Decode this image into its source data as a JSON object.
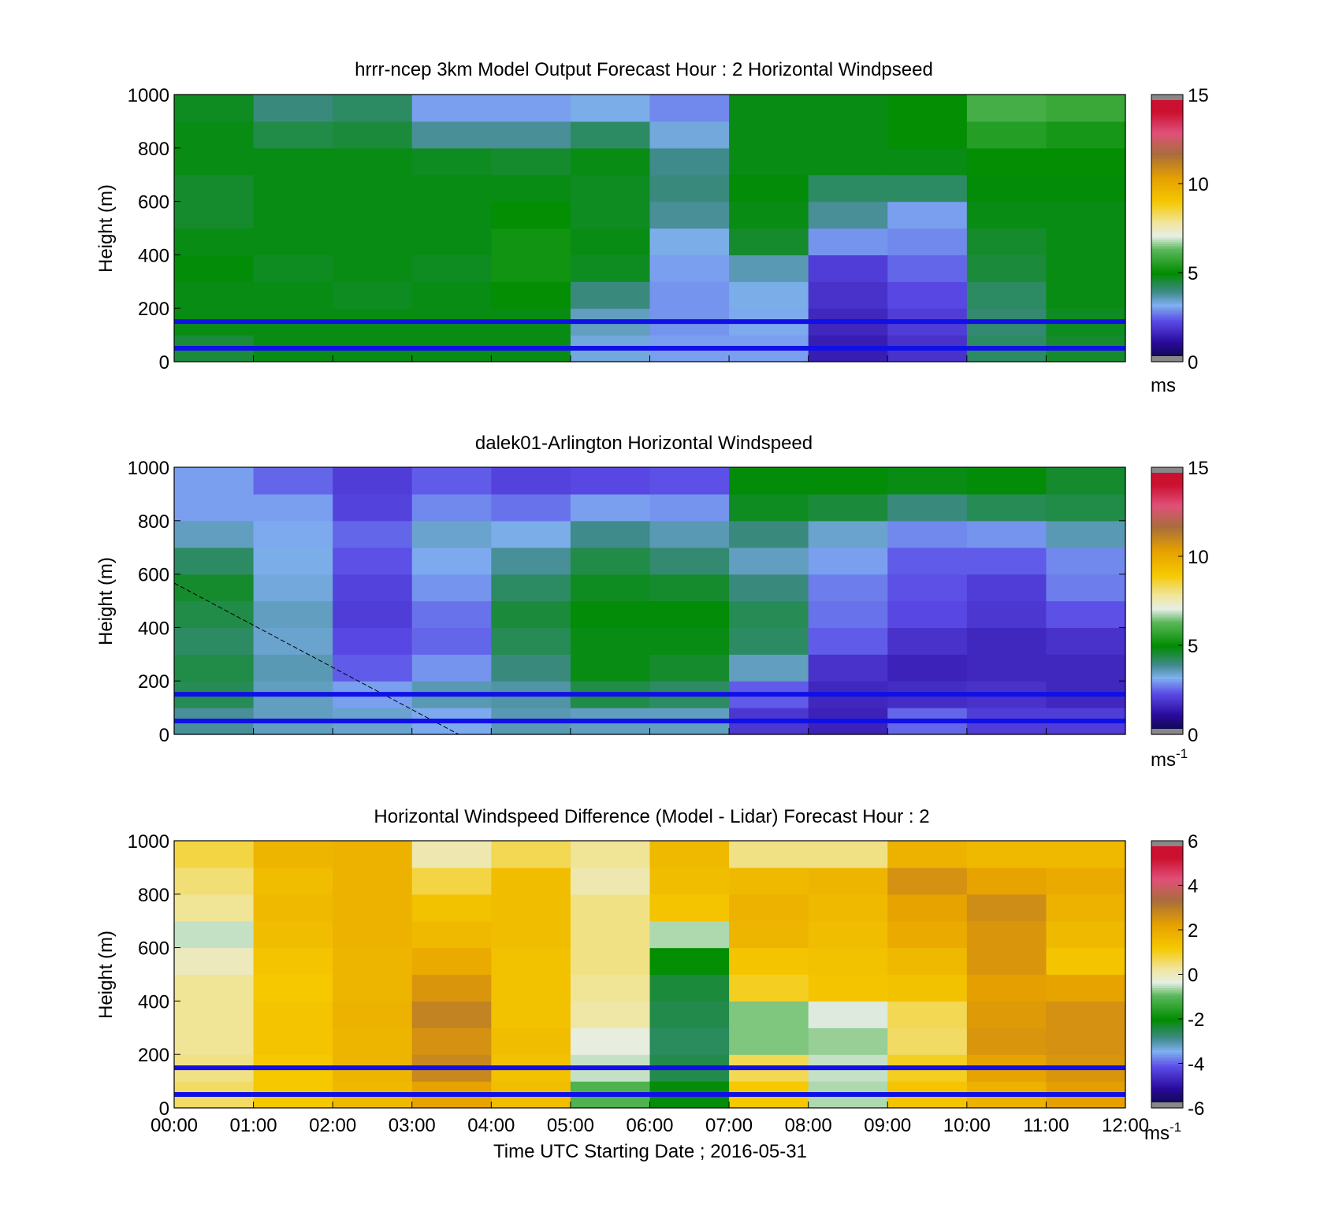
{
  "xticks": [
    "00:00",
    "01:00",
    "02:00",
    "03:00",
    "04:00",
    "05:00",
    "06:00",
    "07:00",
    "08:00",
    "09:00",
    "10:00",
    "11:00",
    "12:00"
  ],
  "x_axis_label": "Time UTC  Starting Date ; 2016-05-31",
  "reference_lines_m": [
    50,
    150
  ],
  "line_color": "#1010e6",
  "panels": [
    {
      "title": "hrrr-ncep 3km Model Output   Forecast Hour : 2 Horizontal Windpseed",
      "ylabel": "Height (m)",
      "yticks": [
        "0",
        "200",
        "400",
        "600",
        "800",
        "1000"
      ],
      "cbar_ticks": [
        "0",
        "5",
        "10",
        "15"
      ],
      "cbar_unit": "ms",
      "cbar_unit_sup": "",
      "colormap": "speed",
      "vmin": 0,
      "vmax": 15
    },
    {
      "title": "dalek01-Arlington  Horizontal Windspeed",
      "ylabel": "Height (m)",
      "yticks": [
        "0",
        "200",
        "400",
        "600",
        "800",
        "1000"
      ],
      "cbar_ticks": [
        "0",
        "5",
        "10",
        "15"
      ],
      "cbar_unit": "ms",
      "cbar_unit_sup": "-1",
      "colormap": "speed",
      "vmin": 0,
      "vmax": 15
    },
    {
      "title": "Horizontal Windspeed Difference (Model - Lidar) Forecast Hour : 2",
      "ylabel": "Height (m)",
      "yticks": [
        "0",
        "200",
        "400",
        "600",
        "800",
        "1000"
      ],
      "cbar_ticks": [
        "-6",
        "-4",
        "-2",
        "0",
        "2",
        "4",
        "6"
      ],
      "cbar_unit": "ms",
      "cbar_unit_sup": "-1",
      "colormap": "speed",
      "vmin": -6,
      "vmax": 6
    }
  ],
  "chart_data": [
    {
      "type": "heatmap",
      "title": "hrrr-ncep 3km Model Output   Forecast Hour : 2 Horizontal Windpseed",
      "xlabel": "",
      "ylabel": "Height (m)",
      "x_range": [
        "00:00",
        "12:00"
      ],
      "ylim": [
        0,
        1000
      ],
      "colorbar": {
        "range": [
          0,
          15
        ],
        "unit": "ms"
      },
      "columns_hours": [
        0,
        1,
        2,
        3,
        4,
        5,
        6,
        7,
        8,
        9,
        10,
        11
      ],
      "levels_m": [
        50,
        150,
        250,
        350,
        450,
        550,
        650,
        750,
        850,
        950
      ],
      "values_ms": [
        [
          4.5,
          4.8,
          4.8,
          4.9,
          4.8,
          4.6,
          4.6,
          4.8,
          4.8,
          4.7
        ],
        [
          4.8,
          4.8,
          4.8,
          4.7,
          4.8,
          4.8,
          4.8,
          4.8,
          4.4,
          4.0
        ],
        [
          4.8,
          4.8,
          4.7,
          4.8,
          4.8,
          4.8,
          4.8,
          4.8,
          4.5,
          4.2
        ],
        [
          4.8,
          4.8,
          4.8,
          4.7,
          4.8,
          4.8,
          4.8,
          4.7,
          3.8,
          3.0
        ],
        [
          4.8,
          4.8,
          5.0,
          5.2,
          5.2,
          5.0,
          4.8,
          4.6,
          3.8,
          3.0
        ],
        [
          3.3,
          3.5,
          4.0,
          4.7,
          4.8,
          4.7,
          4.7,
          4.8,
          4.2,
          3.2
        ],
        [
          3.0,
          2.9,
          2.9,
          3.0,
          3.2,
          3.8,
          4.0,
          3.9,
          3.3,
          2.8
        ],
        [
          3.0,
          3.1,
          3.2,
          3.6,
          4.6,
          4.8,
          4.9,
          4.8,
          4.8,
          4.8
        ],
        [
          1.4,
          1.6,
          1.8,
          2.0,
          2.9,
          3.8,
          4.2,
          4.8,
          4.8,
          4.8
        ],
        [
          1.8,
          2.0,
          2.2,
          2.5,
          2.8,
          3.0,
          4.2,
          4.8,
          5.0,
          5.0
        ],
        [
          4.2,
          4.1,
          4.2,
          4.5,
          4.6,
          4.8,
          4.9,
          5.0,
          5.5,
          6.0
        ],
        [
          4.6,
          4.7,
          4.8,
          4.8,
          4.8,
          4.8,
          4.9,
          5.0,
          5.3,
          5.8
        ]
      ],
      "reference_lines_m": [
        50,
        150
      ]
    },
    {
      "type": "heatmap",
      "title": "dalek01-Arlington  Horizontal Windspeed",
      "xlabel": "",
      "ylabel": "Height (m)",
      "x_range": [
        "00:00",
        "12:00"
      ],
      "ylim": [
        0,
        1000
      ],
      "colorbar": {
        "range": [
          0,
          15
        ],
        "unit": "ms-1"
      },
      "columns_hours": [
        0,
        1,
        2,
        3,
        4,
        5,
        6,
        7,
        8,
        9,
        10,
        11
      ],
      "levels_m": [
        50,
        150,
        250,
        350,
        450,
        550,
        650,
        750,
        850,
        950
      ],
      "values_ms": [
        [
          3.8,
          4.3,
          4.4,
          4.2,
          4.4,
          4.6,
          4.2,
          3.5,
          3.0,
          3.0
        ],
        [
          3.5,
          3.5,
          3.6,
          3.4,
          3.5,
          3.3,
          3.2,
          3.1,
          3.0,
          2.5
        ],
        [
          3.4,
          3.0,
          2.4,
          2.2,
          2.0,
          2.1,
          2.3,
          2.5,
          2.1,
          2.0
        ],
        [
          3.1,
          3.6,
          2.9,
          2.5,
          2.6,
          2.9,
          3.1,
          3.4,
          2.8,
          2.4
        ],
        [
          3.6,
          3.7,
          4.0,
          4.3,
          4.5,
          4.2,
          3.8,
          3.2,
          2.6,
          2.1
        ],
        [
          3.5,
          4.4,
          4.8,
          4.8,
          4.9,
          4.7,
          4.4,
          3.9,
          3.0,
          2.2
        ],
        [
          3.5,
          4.2,
          4.6,
          4.8,
          4.9,
          4.6,
          4.1,
          3.6,
          2.9,
          2.3
        ],
        [
          1.9,
          2.4,
          3.5,
          4.2,
          4.3,
          4.0,
          3.5,
          4.0,
          4.7,
          4.9
        ],
        [
          1.5,
          1.6,
          1.8,
          2.4,
          2.6,
          2.7,
          3.0,
          3.4,
          4.5,
          4.9
        ],
        [
          2.5,
          1.7,
          1.5,
          1.8,
          2.2,
          2.3,
          2.4,
          2.8,
          4.0,
          4.8
        ],
        [
          2.0,
          1.8,
          1.6,
          1.6,
          1.9,
          2.0,
          2.4,
          2.9,
          4.3,
          4.9
        ],
        [
          2.0,
          1.6,
          1.6,
          1.8,
          2.3,
          2.7,
          2.8,
          3.6,
          4.4,
          4.6
        ]
      ],
      "reference_lines_m": [
        50,
        150
      ]
    },
    {
      "type": "heatmap",
      "title": "Horizontal Windspeed Difference (Model - Lidar) Forecast Hour : 2",
      "xlabel": "Time UTC  Starting Date ; 2016-05-31",
      "ylabel": "Height (m)",
      "x_range": [
        "00:00",
        "12:00"
      ],
      "ylim": [
        0,
        1000
      ],
      "colorbar": {
        "range": [
          -6,
          6
        ],
        "unit": "ms-1"
      },
      "columns_hours": [
        0,
        1,
        2,
        3,
        4,
        5,
        6,
        7,
        8,
        9,
        10,
        11
      ],
      "levels_m": [
        50,
        150,
        250,
        350,
        450,
        550,
        650,
        750,
        850,
        950
      ],
      "values_ms": [
        [
          0.6,
          0.4,
          0.3,
          0.3,
          0.3,
          0.0,
          -0.5,
          0.3,
          0.5,
          0.8
        ],
        [
          1.2,
          1.2,
          1.3,
          1.3,
          1.2,
          1.3,
          1.5,
          1.6,
          1.5,
          1.7
        ],
        [
          1.6,
          1.7,
          1.7,
          1.8,
          1.7,
          1.7,
          1.8,
          1.8,
          1.8,
          1.8
        ],
        [
          2.2,
          2.8,
          2.6,
          2.9,
          2.5,
          2.0,
          1.6,
          1.4,
          0.8,
          0.1
        ],
        [
          1.5,
          1.4,
          1.5,
          1.4,
          1.4,
          1.4,
          1.5,
          1.5,
          1.5,
          0.7
        ],
        [
          -1.1,
          -0.5,
          -0.3,
          0.2,
          0.3,
          0.4,
          0.4,
          0.4,
          0.1,
          0.3
        ],
        [
          -2.1,
          -2.5,
          -2.6,
          -2.5,
          -2.4,
          -2.0,
          -0.6,
          1.3,
          1.5,
          1.6
        ],
        [
          1.2,
          0.7,
          -0.8,
          -0.8,
          1.0,
          1.3,
          1.7,
          1.8,
          1.6,
          0.4
        ],
        [
          -0.6,
          -0.5,
          -0.7,
          -0.4,
          1.3,
          1.4,
          1.5,
          1.6,
          1.7,
          0.4
        ],
        [
          1.3,
          1.0,
          0.6,
          0.7,
          1.4,
          1.6,
          2.0,
          2.2,
          2.6,
          1.8
        ],
        [
          1.8,
          2.2,
          2.5,
          2.4,
          2.3,
          2.5,
          2.5,
          2.7,
          2.2,
          1.6
        ],
        [
          2.3,
          2.5,
          2.6,
          2.6,
          2.2,
          1.3,
          1.6,
          1.8,
          2.0,
          1.6
        ]
      ],
      "reference_lines_m": [
        50,
        150
      ]
    }
  ]
}
